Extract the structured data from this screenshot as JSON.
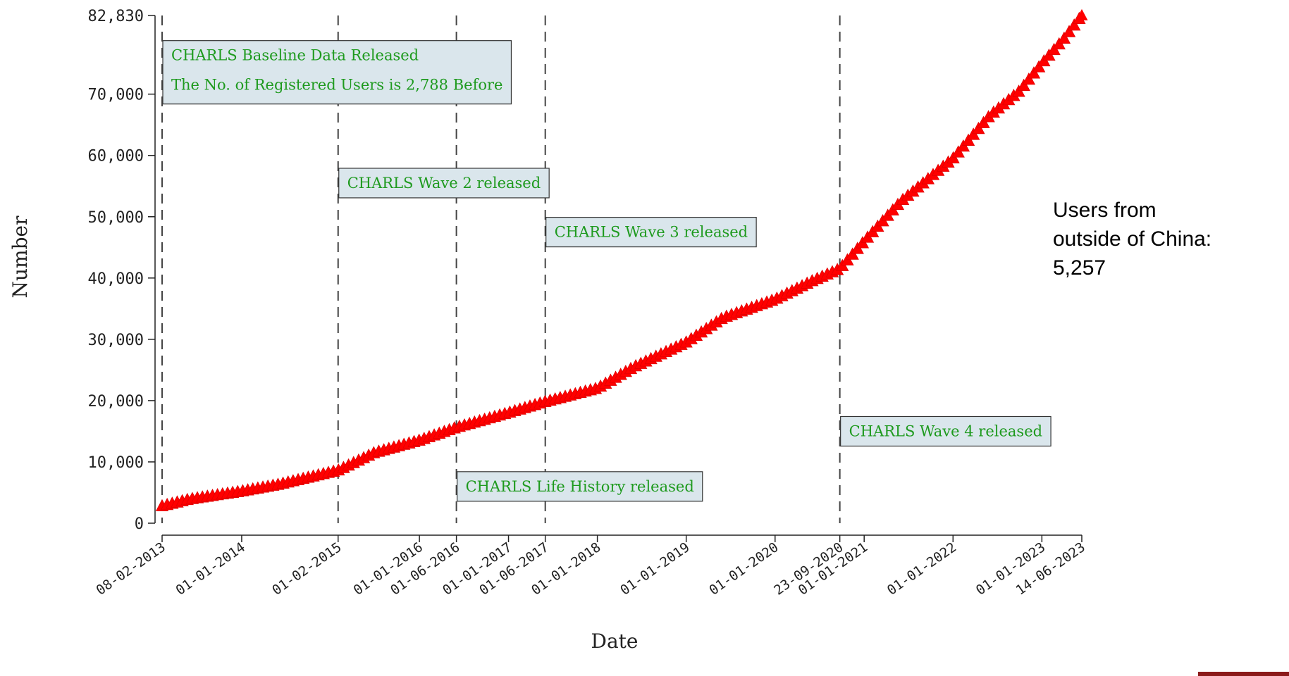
{
  "chart_data": {
    "type": "scatter",
    "xlabel": "Date",
    "ylabel": "Number",
    "ylim": [
      0,
      82830
    ],
    "xlim": [
      "2013-02-08",
      "2023-06-14"
    ],
    "y_ticks": [
      {
        "value": 0,
        "label": "0"
      },
      {
        "value": 10000,
        "label": "10,000"
      },
      {
        "value": 20000,
        "label": "20,000"
      },
      {
        "value": 30000,
        "label": "30,000"
      },
      {
        "value": 40000,
        "label": "40,000"
      },
      {
        "value": 50000,
        "label": "50,000"
      },
      {
        "value": 60000,
        "label": "60,000"
      },
      {
        "value": 70000,
        "label": "70,000"
      },
      {
        "value": 82830,
        "label": "82,830"
      }
    ],
    "x_ticks": [
      {
        "date": "2013-02-08",
        "label": "08-02-2013"
      },
      {
        "date": "2014-01-01",
        "label": "01-01-2014"
      },
      {
        "date": "2015-02-01",
        "label": "01-02-2015"
      },
      {
        "date": "2016-01-01",
        "label": "01-01-2016"
      },
      {
        "date": "2016-06-01",
        "label": "01-06-2016"
      },
      {
        "date": "2017-01-01",
        "label": "01-01-2017"
      },
      {
        "date": "2017-06-01",
        "label": "01-06-2017"
      },
      {
        "date": "2018-01-01",
        "label": "01-01-2018"
      },
      {
        "date": "2019-01-01",
        "label": "01-01-2019"
      },
      {
        "date": "2020-01-01",
        "label": "01-01-2020"
      },
      {
        "date": "2020-09-23",
        "label": "23-09-2020"
      },
      {
        "date": "2021-01-01",
        "label": "01-01-2021"
      },
      {
        "date": "2022-01-01",
        "label": "01-01-2022"
      },
      {
        "date": "2023-01-01",
        "label": "01-01-2023"
      },
      {
        "date": "2023-06-14",
        "label": "14-06-2023"
      }
    ],
    "release_dates": [
      "2013-02-08",
      "2015-02-01",
      "2016-06-01",
      "2017-06-01",
      "2020-09-23"
    ],
    "annotations": [
      {
        "date": "2013-02-08",
        "y": 70000,
        "lines": [
          "CHARLS Baseline Data Released",
          "The No. of Registered Users is 2,788 Before"
        ]
      },
      {
        "date": "2015-02-01",
        "y": 54000,
        "lines": [
          "CHARLS Wave 2 released"
        ]
      },
      {
        "date": "2017-06-01",
        "y": 46000,
        "lines": [
          "CHARLS Wave 3 released"
        ]
      },
      {
        "date": "2016-06-01",
        "y": 4500,
        "lines": [
          "CHARLS Life History released"
        ]
      },
      {
        "date": "2020-09-23",
        "y": 13500,
        "lines": [
          "CHARLS Wave 4 released"
        ]
      }
    ],
    "marker": "triangle",
    "marker_color": "#ff0000",
    "anno_text_color": "#1e9a1e",
    "anno_bg_color": "#dae6ec",
    "knots": [
      {
        "date": "2013-02-08",
        "value": 2788
      },
      {
        "date": "2013-06-01",
        "value": 3900
      },
      {
        "date": "2014-01-01",
        "value": 5200
      },
      {
        "date": "2014-06-01",
        "value": 6300
      },
      {
        "date": "2015-02-01",
        "value": 8600
      },
      {
        "date": "2015-07-01",
        "value": 11500
      },
      {
        "date": "2016-01-01",
        "value": 13500
      },
      {
        "date": "2016-06-01",
        "value": 15600
      },
      {
        "date": "2017-01-01",
        "value": 18000
      },
      {
        "date": "2017-06-01",
        "value": 19800
      },
      {
        "date": "2018-01-01",
        "value": 22000
      },
      {
        "date": "2018-06-01",
        "value": 25500
      },
      {
        "date": "2019-01-01",
        "value": 29500
      },
      {
        "date": "2019-06-01",
        "value": 33500
      },
      {
        "date": "2020-01-01",
        "value": 36500
      },
      {
        "date": "2020-06-01",
        "value": 39500
      },
      {
        "date": "2020-09-23",
        "value": 41500
      },
      {
        "date": "2021-01-01",
        "value": 46000
      },
      {
        "date": "2021-06-01",
        "value": 52500
      },
      {
        "date": "2022-01-01",
        "value": 59500
      },
      {
        "date": "2022-06-01",
        "value": 66500
      },
      {
        "date": "2022-10-01",
        "value": 70500
      },
      {
        "date": "2023-01-01",
        "value": 75000
      },
      {
        "date": "2023-04-01",
        "value": 79000
      },
      {
        "date": "2023-06-14",
        "value": 82830
      }
    ]
  },
  "side_note": {
    "line1": "Users from",
    "line2": "outside of China:",
    "line3": "5,257"
  }
}
